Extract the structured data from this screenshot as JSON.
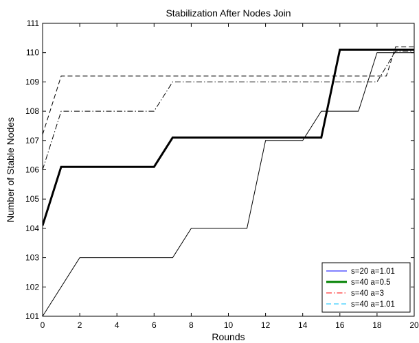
{
  "chart_data": {
    "type": "line",
    "title": "Stabilization After Nodes Join",
    "xlabel": "Rounds",
    "ylabel": "Number of Stable Nodes",
    "xlim": [
      0,
      20
    ],
    "ylim": [
      101,
      111
    ],
    "xticks": [
      0,
      2,
      4,
      6,
      8,
      10,
      12,
      14,
      16,
      18,
      20
    ],
    "xtick_labels": [
      "0",
      "2",
      "4",
      "6",
      "8",
      "10",
      "12",
      "14",
      "16",
      "18",
      "20"
    ],
    "yticks": [
      101,
      102,
      103,
      104,
      105,
      106,
      107,
      108,
      109,
      110,
      111
    ],
    "ytick_labels": [
      "101",
      "102",
      "103",
      "104",
      "105",
      "106",
      "107",
      "108",
      "109",
      "110",
      "111"
    ],
    "grid": false,
    "legend_position": "bottom-right",
    "series": [
      {
        "name": "s=20 a=1.01",
        "legend_color": "#0000ff",
        "line_color": "#000000",
        "dash": "solid",
        "weight": "thin",
        "x": [
          0,
          2,
          7,
          8,
          11,
          12,
          14,
          15,
          17,
          18,
          19,
          20
        ],
        "y": [
          101,
          103,
          103,
          104,
          104,
          107,
          107,
          108,
          108,
          110,
          110,
          110
        ]
      },
      {
        "name": "s=40 a=0.5",
        "legend_color": "#008000",
        "line_color": "#000000",
        "dash": "solid",
        "weight": "thick",
        "x": [
          0,
          1,
          6,
          7,
          15,
          16,
          20
        ],
        "y": [
          104.1,
          106.1,
          106.1,
          107.1,
          107.1,
          110.1,
          110.1
        ]
      },
      {
        "name": "s=40 a=3",
        "legend_color": "#ff0000",
        "line_color": "#000000",
        "dash": "dashdot",
        "weight": "thin",
        "x": [
          0,
          1,
          6,
          7,
          18,
          19,
          20
        ],
        "y": [
          106,
          108,
          108,
          109,
          109,
          110.05,
          110.05
        ]
      },
      {
        "name": "s=40 a=1.01",
        "legend_color": "#00bfff",
        "line_color": "#000000",
        "dash": "dashed",
        "weight": "thin",
        "x": [
          0,
          1,
          18.5,
          19,
          20
        ],
        "y": [
          107.2,
          109.2,
          109.2,
          110.2,
          110.2
        ]
      }
    ]
  }
}
